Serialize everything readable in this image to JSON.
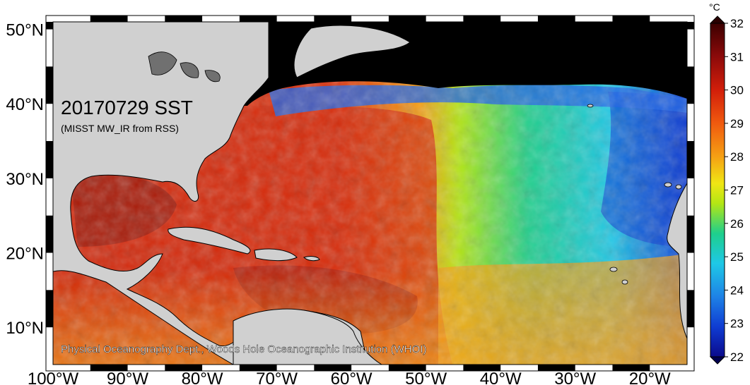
{
  "map": {
    "title": "20170729 SST",
    "subtitle": "(MISST MW_IR from RSS)",
    "credit": "Physical Oceanography Dept., Woods Hole Oceanographic Institution (WHOI)",
    "lat_labels": [
      "50°N",
      "40°N",
      "30°N",
      "20°N",
      "10°N"
    ],
    "lon_labels": [
      "100°W",
      "90°W",
      "80°W",
      "70°W",
      "60°W",
      "50°W",
      "40°W",
      "30°W",
      "20°W"
    ],
    "lat_range": [
      5,
      51
    ],
    "lon_range": [
      -100,
      -15
    ]
  },
  "colorbar": {
    "unit": "°C",
    "min": 22,
    "max": 32,
    "tick_labels": [
      "32",
      "31",
      "30",
      "29",
      "28",
      "27",
      "26",
      "25",
      "24",
      "23",
      "22"
    ],
    "colors": [
      "#0a0a8c",
      "#0f3cd2",
      "#1e82e6",
      "#1ec8e6",
      "#1ecf8c",
      "#b4e614",
      "#f0e614",
      "#f5a014",
      "#f05a0f",
      "#d21e0a",
      "#8c0a0a",
      "#3c0000"
    ]
  }
}
